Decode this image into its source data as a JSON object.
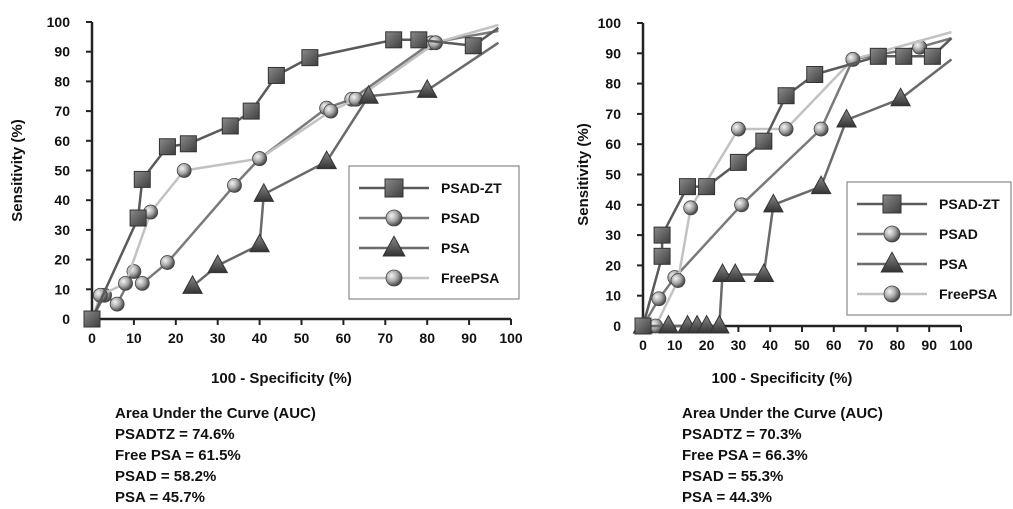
{
  "colors": {
    "PSAD-ZT": "#5a5a5a",
    "PSAD": "#7a7a7a",
    "PSA": "#6a6a6a",
    "FreePSA": "#c2c2c2",
    "axis": "#222222"
  },
  "chart_data": [
    {
      "type": "line",
      "xlabel": "100 - Specificity (%)",
      "ylabel": "Sensitivity (%)",
      "xlim": [
        0,
        100
      ],
      "ylim": [
        0,
        100
      ],
      "xticks": [
        "0",
        "10",
        "20",
        "30",
        "40",
        "50",
        "60",
        "70",
        "80",
        "90",
        "100"
      ],
      "yticks": [
        "0",
        "10",
        "20",
        "30",
        "40",
        "50",
        "60",
        "70",
        "80",
        "90",
        "100"
      ],
      "legend": "center-right",
      "series": [
        {
          "name": "PSAD-ZT",
          "marker": "square",
          "points": [
            [
              0,
              0
            ],
            [
              0,
              0
            ],
            [
              11,
              34
            ],
            [
              12,
              47
            ],
            [
              18,
              58
            ],
            [
              23,
              59
            ],
            [
              33,
              65
            ],
            [
              38,
              70
            ],
            [
              44,
              82
            ],
            [
              52,
              88
            ],
            [
              72,
              94
            ],
            [
              78,
              94
            ],
            [
              91,
              92
            ],
            [
              97,
              98
            ]
          ]
        },
        {
          "name": "PSAD",
          "marker": "circle",
          "points": [
            [
              0,
              0
            ],
            [
              3,
              8
            ],
            [
              6,
              5
            ],
            [
              10,
              16
            ],
            [
              12,
              12
            ],
            [
              18,
              19
            ],
            [
              34,
              45
            ],
            [
              40,
              54
            ],
            [
              56,
              71
            ],
            [
              62,
              74
            ],
            [
              81,
              93
            ],
            [
              97,
              97
            ]
          ]
        },
        {
          "name": "PSA",
          "marker": "triangle",
          "points": [
            [
              24,
              11
            ],
            [
              30,
              18
            ],
            [
              40,
              25
            ],
            [
              41,
              42
            ],
            [
              56,
              53
            ],
            [
              66,
              75
            ],
            [
              80,
              77
            ],
            [
              97,
              93
            ]
          ]
        },
        {
          "name": "FreePSA",
          "marker": "circle",
          "points": [
            [
              0,
              0
            ],
            [
              2,
              8
            ],
            [
              8,
              12
            ],
            [
              14,
              36
            ],
            [
              22,
              50
            ],
            [
              40,
              54
            ],
            [
              57,
              70
            ],
            [
              63,
              74
            ],
            [
              82,
              93
            ],
            [
              97,
              99
            ]
          ]
        }
      ],
      "auc_title": "Area Under the Curve (AUC)",
      "auc_lines": [
        "PSADTZ = 74.6%",
        "Free PSA = 61.5%",
        "PSAD = 58.2%",
        "PSA = 45.7%"
      ]
    },
    {
      "type": "line",
      "xlabel": "100 - Specificity (%)",
      "ylabel": "Sensitivity (%)",
      "xlim": [
        0,
        100
      ],
      "ylim": [
        0,
        100
      ],
      "xticks": [
        "0",
        "10",
        "20",
        "30",
        "40",
        "50",
        "60",
        "70",
        "80",
        "90",
        "100"
      ],
      "yticks": [
        "0",
        "10",
        "20",
        "30",
        "40",
        "50",
        "60",
        "70",
        "80",
        "90",
        "100"
      ],
      "legend": "center-right",
      "series": [
        {
          "name": "PSAD-ZT",
          "marker": "square",
          "points": [
            [
              0,
              0
            ],
            [
              6,
              23
            ],
            [
              6,
              30
            ],
            [
              14,
              46
            ],
            [
              20,
              46
            ],
            [
              30,
              54
            ],
            [
              38,
              61
            ],
            [
              45,
              76
            ],
            [
              54,
              83
            ],
            [
              74,
              89
            ],
            [
              82,
              89
            ],
            [
              91,
              89
            ],
            [
              97,
              95
            ]
          ]
        },
        {
          "name": "PSAD",
          "marker": "circle",
          "points": [
            [
              0,
              0
            ],
            [
              5,
              9
            ],
            [
              10,
              16
            ],
            [
              31,
              40
            ],
            [
              56,
              65
            ],
            [
              66,
              88
            ],
            [
              87,
              92
            ],
            [
              97,
              95
            ]
          ]
        },
        {
          "name": "PSA",
          "marker": "triangle",
          "points": [
            [
              0,
              0
            ],
            [
              8,
              0
            ],
            [
              14,
              0
            ],
            [
              17,
              0
            ],
            [
              20,
              0
            ],
            [
              24,
              0
            ],
            [
              25,
              17
            ],
            [
              29,
              17
            ],
            [
              38,
              17
            ],
            [
              41,
              40
            ],
            [
              56,
              46
            ],
            [
              64,
              68
            ],
            [
              81,
              75
            ],
            [
              97,
              88
            ]
          ]
        },
        {
          "name": "FreePSA",
          "marker": "circle",
          "points": [
            [
              0,
              0
            ],
            [
              4,
              0
            ],
            [
              11,
              15
            ],
            [
              15,
              39
            ],
            [
              30,
              65
            ],
            [
              45,
              65
            ],
            [
              66,
              88
            ],
            [
              97,
              97
            ]
          ]
        }
      ],
      "auc_title": "Area Under the Curve (AUC)",
      "auc_lines": [
        "PSADTZ = 70.3%",
        "Free PSA = 66.3%",
        "PSAD = 55.3%",
        "PSA = 44.3%"
      ]
    }
  ]
}
